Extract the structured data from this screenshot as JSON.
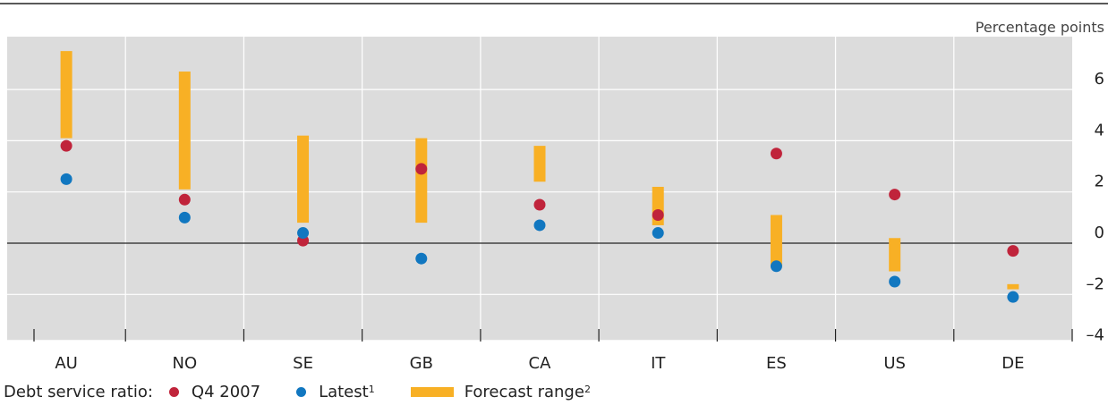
{
  "chart_data": {
    "type": "scatter",
    "unit_label": "Percentage points",
    "categories": [
      "AU",
      "NO",
      "SE",
      "GB",
      "CA",
      "IT",
      "ES",
      "US",
      "DE"
    ],
    "ylim": [
      -4,
      8
    ],
    "yticks": [
      6,
      4,
      2,
      0,
      -2,
      -4
    ],
    "ytick_labels": [
      "6",
      "4",
      "2",
      "0",
      "–2",
      "–4"
    ],
    "grid": true,
    "series": [
      {
        "name": "Q4 2007",
        "kind": "point",
        "color": "#c0243b",
        "values": [
          3.8,
          1.7,
          0.1,
          2.9,
          1.5,
          1.1,
          3.5,
          1.9,
          -0.3
        ]
      },
      {
        "name": "Latest",
        "kind": "point",
        "color": "#1177c0",
        "values": [
          2.5,
          1.0,
          0.4,
          -0.6,
          0.7,
          0.4,
          -0.9,
          -1.5,
          -2.1
        ]
      },
      {
        "name": "Forecast range",
        "kind": "range",
        "color": "#f8b025",
        "ranges": [
          [
            4.1,
            7.5
          ],
          [
            2.1,
            6.7
          ],
          [
            0.8,
            4.2
          ],
          [
            0.8,
            4.1
          ],
          [
            2.4,
            3.8
          ],
          [
            0.7,
            2.2
          ],
          [
            -0.9,
            1.1
          ],
          [
            -1.1,
            0.2
          ],
          [
            -1.8,
            -1.6
          ]
        ]
      }
    ]
  },
  "legend": {
    "lead": "Debt service ratio:",
    "items": [
      {
        "label": "Q4 2007",
        "sup": "",
        "color": "#c0243b",
        "kind": "dot"
      },
      {
        "label": "Latest",
        "sup": "1",
        "color": "#1177c0",
        "kind": "dot"
      },
      {
        "label": "Forecast range",
        "sup": "2",
        "color": "#f8b025",
        "kind": "bar"
      }
    ]
  }
}
